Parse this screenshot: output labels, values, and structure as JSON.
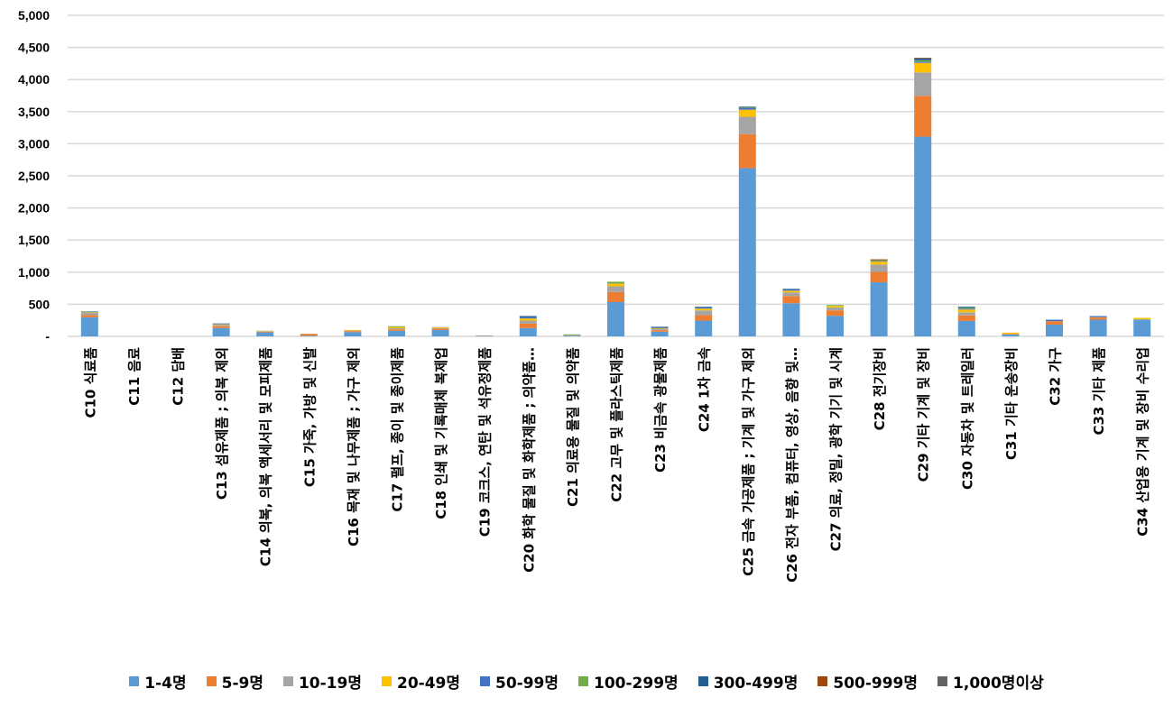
{
  "chart_data": {
    "type": "bar",
    "stacked": true,
    "title": "",
    "xlabel": "",
    "ylabel": "",
    "ylim": [
      0,
      5000
    ],
    "yticks": [
      0,
      500,
      1000,
      1500,
      2000,
      2500,
      3000,
      3500,
      4000,
      4500,
      5000
    ],
    "ytick_labels": [
      "-",
      "500",
      "1,000",
      "1,500",
      "2,000",
      "2,500",
      "3,000",
      "3,500",
      "4,000",
      "4,500",
      "5,000"
    ],
    "grid": true,
    "legend_position": "bottom",
    "categories": [
      "C10 식료품",
      "C11 음료",
      "C12 담배",
      "C13 섬유제품 ; 의복 제외",
      "C14 의복, 의복 액세서리 및 모피제품",
      "C15 가죽, 가방 및 신발",
      "C16 목재 및 나무제품 ; 가구 제외",
      "C17 펄프, 종이 및 종이제품",
      "C18 인쇄 및 기록매체 복제업",
      "C19 코크스, 연탄 및 석유정제품",
      "C20 화학 물질 및 화학제품 ; 의약품…",
      "C21 의료용 물질 및 의약품",
      "C22 고무 및 플라스틱제품",
      "C23 비금속 광물제품",
      "C24 1차 금속",
      "C25 금속 가공제품 ; 기계 및 가구 제외",
      "C26 전자 부품, 컴퓨터, 영상, 음향 및…",
      "C27 의료, 정밀, 광학 기기 및 시계",
      "C28 전기장비",
      "C29 기타 기계 및 장비",
      "C30 자동차 및 트레일러",
      "C31 기타 운송장비",
      "C32 가구",
      "C33 기타 제품",
      "C34 산업용 기계 및 장비 수리업"
    ],
    "series": [
      {
        "name": "1-4명",
        "color": "#5B9BD5",
        "values": [
          298,
          0,
          0,
          130,
          62,
          10,
          67,
          87,
          100,
          8,
          130,
          12,
          534,
          72,
          245,
          2620,
          516,
          321,
          842,
          3110,
          240,
          29,
          183,
          260,
          264
        ]
      },
      {
        "name": "5-9명",
        "color": "#ED7D31",
        "values": [
          33,
          0,
          0,
          29,
          10,
          25,
          15,
          23,
          20,
          4,
          67,
          5,
          158,
          24,
          87,
          530,
          112,
          84,
          163,
          635,
          87,
          10,
          53,
          33,
          0
        ]
      },
      {
        "name": "10-19명",
        "color": "#A5A5A5",
        "values": [
          34,
          0,
          0,
          19,
          8,
          5,
          8,
          15,
          10,
          2,
          48,
          3,
          87,
          24,
          72,
          270,
          56,
          46,
          111,
          365,
          48,
          0,
          0,
          0,
          0
        ]
      },
      {
        "name": "20-49명",
        "color": "#FFC000",
        "values": [
          10,
          0,
          0,
          10,
          6,
          3,
          10,
          19,
          12,
          1,
          34,
          0,
          43,
          10,
          29,
          110,
          28,
          23,
          47,
          150,
          43,
          19,
          0,
          5,
          24
        ]
      },
      {
        "name": "50-99명",
        "color": "#4472C4",
        "values": [
          5,
          0,
          0,
          14,
          2,
          0,
          0,
          0,
          3,
          0,
          19,
          0,
          5,
          0,
          19,
          30,
          18,
          0,
          8,
          20,
          14,
          0,
          24,
          19,
          0
        ]
      },
      {
        "name": "100-299명",
        "color": "#70AD47",
        "values": [
          3,
          0,
          0,
          0,
          0,
          0,
          0,
          14,
          0,
          0,
          0,
          12,
          24,
          0,
          0,
          12,
          0,
          14,
          14,
          20,
          14,
          0,
          0,
          0,
          0
        ]
      },
      {
        "name": "300-499명",
        "color": "#255E91",
        "values": [
          5,
          0,
          0,
          0,
          0,
          0,
          0,
          0,
          0,
          0,
          19,
          0,
          0,
          19,
          10,
          8,
          10,
          0,
          0,
          30,
          16,
          0,
          0,
          0,
          0
        ]
      },
      {
        "name": "500-999명",
        "color": "#9E480E",
        "values": [
          0,
          0,
          0,
          0,
          0,
          0,
          0,
          0,
          0,
          0,
          0,
          0,
          0,
          0,
          0,
          0,
          0,
          0,
          15,
          10,
          0,
          0,
          0,
          0,
          0
        ]
      },
      {
        "name": "1,000명이상",
        "color": "#636363",
        "values": [
          2,
          0,
          0,
          0,
          0,
          0,
          0,
          0,
          0,
          0,
          0,
          0,
          0,
          0,
          0,
          0,
          0,
          0,
          0,
          0,
          0,
          0,
          0,
          0,
          0
        ]
      }
    ]
  }
}
